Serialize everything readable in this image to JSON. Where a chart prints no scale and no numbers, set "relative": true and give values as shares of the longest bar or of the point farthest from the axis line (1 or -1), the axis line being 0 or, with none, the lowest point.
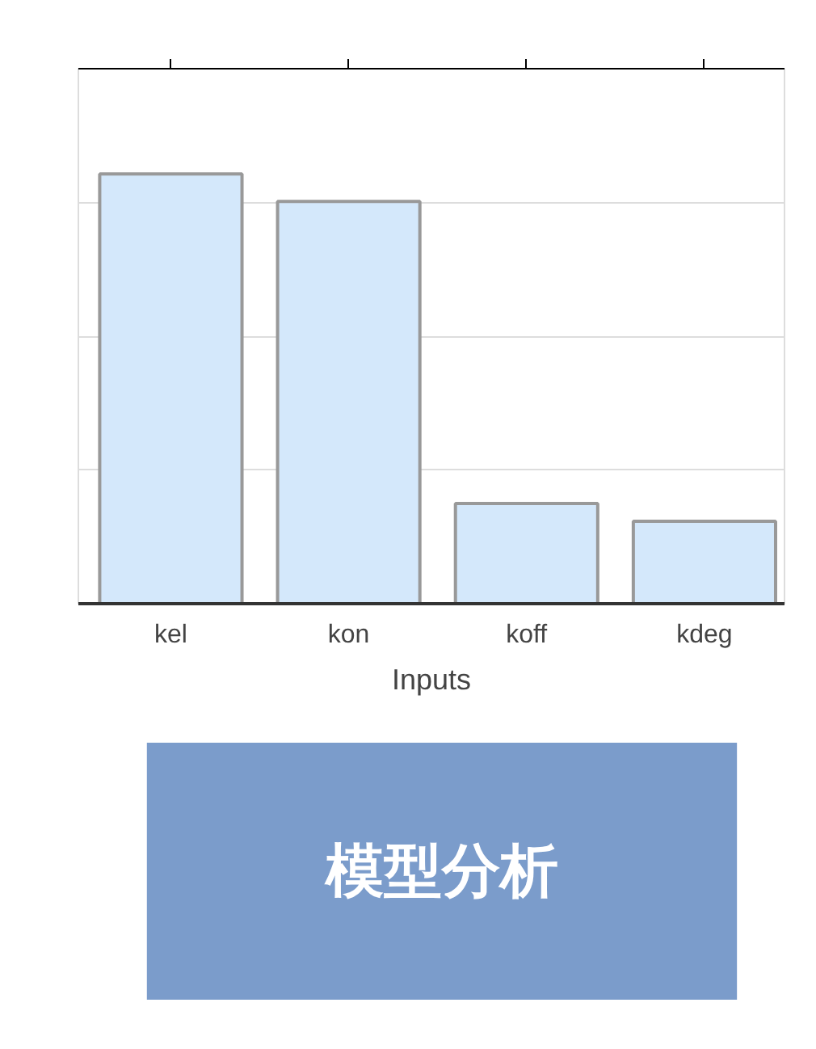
{
  "chart_data": {
    "type": "bar",
    "xlabel": "Inputs",
    "categories": [
      "kel",
      "kon",
      "koff",
      "kdeg"
    ],
    "values": [
      1,
      0.936,
      0.233,
      0.192
    ],
    "color": "#d4e8fb",
    "relative": true,
    "grid": "y",
    "annotations": [
      "模型分析"
    ]
  }
}
